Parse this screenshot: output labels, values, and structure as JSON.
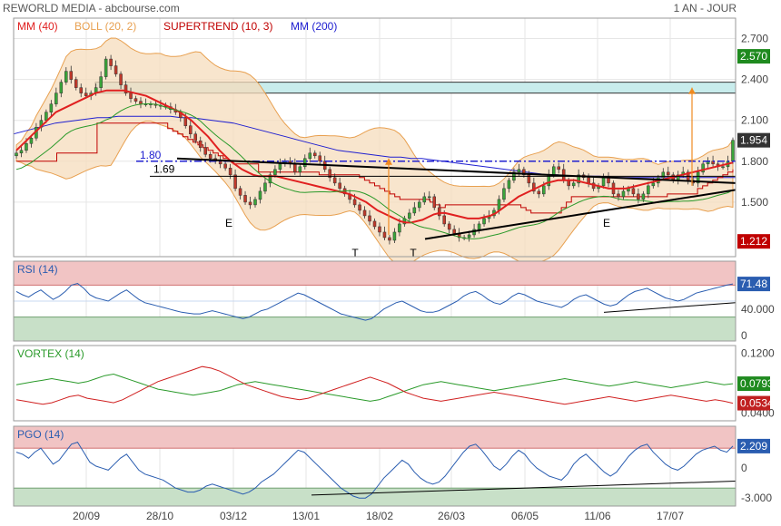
{
  "header": {
    "title": "REWORLD MEDIA - abcbourse.com",
    "period": "1 AN - JOUR"
  },
  "colors": {
    "mm40": "#e02020",
    "boll": "#e8a050",
    "supertrend": "#c00000",
    "mm200": "#2020d0",
    "rsi": "#2a5db0",
    "vortex_pos": "#2a9a2a",
    "vortex_neg": "#d02020",
    "pgo": "#2a5db0",
    "up_candle": "#3aa53a",
    "down_candle": "#c0392b",
    "zone_red": "#f1c4c4",
    "zone_green": "#c8e0c8",
    "resistance_zone": "#c8ecec",
    "last_price_bg": "#333333",
    "mm_badge_bg": "#1f8a1f"
  },
  "chart_data": [
    {
      "type": "line",
      "panel": "price",
      "legend": [
        {
          "label": "MM (40)",
          "color": "#e02020"
        },
        {
          "label": "BOLL (20, 2)",
          "color": "#e8a050"
        },
        {
          "label": "SUPERTREND (10, 3)",
          "color": "#c00000"
        },
        {
          "label": "MM (200)",
          "color": "#2020d0"
        }
      ],
      "x_tick_labels": [
        "20/09",
        "28/10",
        "03/12",
        "13/01",
        "18/02",
        "26/03",
        "06/05",
        "11/06",
        "17/07"
      ],
      "y_ticks": [
        "2.700",
        "2.400",
        "2.100",
        "1.800",
        "1.500"
      ],
      "ylim": [
        1.1,
        2.85
      ],
      "badges": [
        {
          "label": "2.570",
          "value": 2.57,
          "kind": "mm"
        },
        {
          "label": "1.954",
          "value": 1.954,
          "kind": "last"
        },
        {
          "label": "1.212",
          "value": 1.212,
          "kind": "low"
        }
      ],
      "levels": [
        {
          "label": "1.80",
          "value": 1.8,
          "style": "dash-dot-blue"
        },
        {
          "label": "1.69",
          "value": 1.69,
          "style": "solid-black"
        }
      ],
      "resistance_zone": [
        2.3,
        2.38
      ],
      "pattern_labels": [
        {
          "text": "E",
          "value": 1.44,
          "date": "15/11"
        },
        {
          "text": "T",
          "value": 1.22,
          "date": "25/01"
        },
        {
          "text": "T",
          "value": 1.22,
          "date": "02/03"
        },
        {
          "text": "E",
          "value": 1.44,
          "date": "16/06"
        }
      ],
      "close": [
        1.86,
        1.88,
        1.93,
        1.97,
        2.05,
        2.1,
        2.16,
        2.22,
        2.3,
        2.38,
        2.46,
        2.4,
        2.34,
        2.3,
        2.28,
        2.3,
        2.34,
        2.42,
        2.55,
        2.5,
        2.44,
        2.36,
        2.3,
        2.26,
        2.24,
        2.22,
        2.22,
        2.22,
        2.21,
        2.21,
        2.2,
        2.18,
        2.16,
        2.12,
        2.06,
        2.0,
        1.95,
        1.9,
        1.85,
        1.82,
        1.8,
        1.78,
        1.75,
        1.7,
        1.6,
        1.55,
        1.5,
        1.48,
        1.52,
        1.58,
        1.64,
        1.7,
        1.74,
        1.78,
        1.8,
        1.78,
        1.72,
        1.76,
        1.82,
        1.86,
        1.84,
        1.8,
        1.74,
        1.68,
        1.64,
        1.6,
        1.56,
        1.52,
        1.48,
        1.44,
        1.4,
        1.36,
        1.32,
        1.28,
        1.24,
        1.22,
        1.28,
        1.34,
        1.38,
        1.42,
        1.46,
        1.5,
        1.54,
        1.54,
        1.46,
        1.4,
        1.34,
        1.3,
        1.27,
        1.24,
        1.24,
        1.26,
        1.3,
        1.34,
        1.38,
        1.4,
        1.44,
        1.52,
        1.6,
        1.66,
        1.72,
        1.74,
        1.7,
        1.64,
        1.58,
        1.56,
        1.62,
        1.7,
        1.76,
        1.74,
        1.66,
        1.62,
        1.64,
        1.7,
        1.68,
        1.64,
        1.6,
        1.62,
        1.68,
        1.64,
        1.56,
        1.54,
        1.58,
        1.6,
        1.56,
        1.52,
        1.56,
        1.62,
        1.64,
        1.68,
        1.72,
        1.7,
        1.66,
        1.7,
        1.72,
        1.66,
        1.64,
        1.72,
        1.78,
        1.8,
        1.78,
        1.76,
        1.76,
        1.8,
        1.954
      ],
      "mm40": [
        1.88,
        1.92,
        1.96,
        2.0,
        2.04,
        2.08,
        2.12,
        2.16,
        2.18,
        2.2,
        2.22,
        2.24,
        2.26,
        2.28,
        2.3,
        2.31,
        2.32,
        2.32,
        2.32,
        2.32,
        2.31,
        2.3,
        2.29,
        2.28,
        2.26,
        2.24,
        2.22,
        2.2,
        2.18,
        2.16,
        2.13,
        2.1,
        2.06,
        2.02,
        1.98,
        1.93,
        1.88,
        1.84,
        1.8,
        1.77,
        1.74,
        1.72,
        1.7,
        1.69,
        1.69,
        1.69,
        1.69,
        1.68,
        1.67,
        1.66,
        1.65,
        1.64,
        1.63,
        1.62,
        1.61,
        1.6,
        1.59,
        1.58,
        1.57,
        1.56,
        1.54,
        1.52,
        1.5,
        1.47,
        1.44,
        1.42,
        1.4,
        1.38,
        1.36,
        1.35,
        1.35,
        1.36,
        1.37,
        1.39,
        1.41,
        1.42,
        1.42,
        1.41,
        1.4,
        1.39,
        1.38,
        1.38,
        1.38,
        1.39,
        1.4,
        1.42,
        1.45,
        1.48,
        1.51,
        1.54,
        1.56,
        1.58,
        1.6,
        1.62,
        1.64,
        1.65,
        1.66,
        1.66,
        1.66,
        1.66,
        1.65,
        1.64,
        1.63,
        1.62,
        1.61,
        1.6,
        1.6,
        1.6,
        1.6,
        1.61,
        1.62,
        1.63,
        1.64,
        1.65,
        1.66,
        1.67,
        1.68,
        1.69,
        1.7,
        1.71,
        1.72,
        1.73,
        1.74,
        1.75,
        1.76,
        1.77,
        1.78,
        1.79
      ],
      "mm200": [
        2.0,
        2.02,
        2.04,
        2.06,
        2.08,
        2.09,
        2.1,
        2.11,
        2.12,
        2.12,
        2.13,
        2.13,
        2.13,
        2.13,
        2.13,
        2.13,
        2.12,
        2.12,
        2.11,
        2.1,
        2.09,
        2.08,
        2.06,
        2.04,
        2.02,
        2.0,
        1.98,
        1.96,
        1.94,
        1.92,
        1.9,
        1.88,
        1.87,
        1.86,
        1.85,
        1.84,
        1.83,
        1.83,
        1.82,
        1.82,
        1.81,
        1.8,
        1.79,
        1.78,
        1.77,
        1.76,
        1.75,
        1.74,
        1.73,
        1.72,
        1.71,
        1.7,
        1.7,
        1.69,
        1.69,
        1.69,
        1.69,
        1.68,
        1.68,
        1.68,
        1.68,
        1.68,
        1.68,
        1.68,
        1.68,
        1.68,
        1.68,
        1.68,
        1.68,
        1.68
      ],
      "supertrend": [
        1.8,
        1.8,
        1.8,
        1.8,
        1.8,
        1.8,
        1.8,
        1.8,
        1.86,
        1.86,
        1.86,
        1.86,
        1.86,
        1.86,
        1.86,
        1.86,
        2.08,
        2.08,
        2.08,
        2.08,
        2.08,
        2.08,
        2.08,
        2.08,
        2.08,
        2.08,
        2.08,
        2.08,
        2.08,
        2.08,
        2.04,
        2.02,
        2.0,
        1.98,
        1.96,
        1.94,
        1.92,
        1.9,
        1.88,
        1.86,
        1.84,
        1.82,
        1.8,
        1.78,
        1.78,
        1.78,
        1.78,
        1.78,
        1.72,
        1.72,
        1.72,
        1.72,
        1.72,
        1.72,
        1.72,
        1.72,
        1.72,
        1.72,
        1.72,
        1.72,
        1.7,
        1.7,
        1.7,
        1.7,
        1.7,
        1.7,
        1.7,
        1.7,
        1.68,
        1.66,
        1.64,
        1.62,
        1.6,
        1.58,
        1.56,
        1.54,
        1.52,
        1.52,
        1.52,
        1.52,
        1.52,
        1.52,
        1.5,
        1.48,
        1.46,
        1.48,
        1.48,
        1.48,
        1.48,
        1.48,
        1.48,
        1.48,
        1.48,
        1.48,
        1.48,
        1.48,
        1.48,
        1.48,
        1.48,
        1.48,
        1.46,
        1.44,
        1.42,
        1.42,
        1.42,
        1.42,
        1.42,
        1.42,
        1.46,
        1.5,
        1.54,
        1.54,
        1.54,
        1.54,
        1.54,
        1.54,
        1.54,
        1.54,
        1.54,
        1.54,
        1.54,
        1.54,
        1.54,
        1.54,
        1.54,
        1.54,
        1.54,
        1.54,
        1.54,
        1.56,
        1.56,
        1.56,
        1.56,
        1.56,
        1.56,
        1.6,
        1.62,
        1.64,
        1.66,
        1.68,
        1.7,
        1.72,
        1.74
      ]
    },
    {
      "type": "line",
      "panel": "rsi",
      "title": "RSI (14)",
      "y_ticks": [
        "40.000",
        "0"
      ],
      "ylim": [
        0,
        100
      ],
      "zones": {
        "overbought": 70,
        "oversold": 30
      },
      "badge": {
        "label": "71.48",
        "value": 71.48
      },
      "values": [
        62,
        58,
        55,
        60,
        64,
        58,
        52,
        56,
        62,
        70,
        72,
        66,
        58,
        54,
        52,
        50,
        55,
        60,
        64,
        58,
        52,
        48,
        46,
        44,
        42,
        40,
        38,
        36,
        35,
        34,
        34,
        36,
        38,
        36,
        34,
        32,
        30,
        28,
        30,
        34,
        38,
        40,
        44,
        48,
        52,
        56,
        60,
        58,
        54,
        50,
        46,
        42,
        38,
        34,
        32,
        30,
        28,
        26,
        28,
        34,
        40,
        44,
        48,
        50,
        46,
        42,
        38,
        36,
        36,
        38,
        42,
        46,
        50,
        56,
        60,
        62,
        58,
        52,
        48,
        46,
        50,
        56,
        60,
        58,
        54,
        50,
        48,
        46,
        44,
        42,
        46,
        52,
        56,
        58,
        54,
        50,
        46,
        44,
        46,
        52,
        58,
        62,
        64,
        66,
        62,
        58,
        54,
        52,
        50,
        52,
        56,
        60,
        62,
        64,
        66,
        68,
        70,
        71.48
      ]
    },
    {
      "type": "line",
      "panel": "vortex",
      "title": "VORTEX (14)",
      "y_ticks": [
        "0.1200",
        "0.0400"
      ],
      "ylim": [
        0.03,
        0.13
      ],
      "badges": [
        {
          "label": "0.0793",
          "value": 0.0793,
          "series": "positive"
        },
        {
          "label": "0.0534",
          "value": 0.0534,
          "series": "negative"
        }
      ],
      "series": [
        {
          "values": [
            0.078,
            0.08,
            0.082,
            0.084,
            0.086,
            0.084,
            0.082,
            0.08,
            0.082,
            0.086,
            0.09,
            0.092,
            0.088,
            0.084,
            0.08,
            0.076,
            0.072,
            0.07,
            0.068,
            0.066,
            0.064,
            0.066,
            0.068,
            0.07,
            0.074,
            0.078,
            0.08,
            0.082,
            0.08,
            0.078,
            0.076,
            0.074,
            0.072,
            0.07,
            0.068,
            0.066,
            0.064,
            0.062,
            0.06,
            0.058,
            0.056,
            0.058,
            0.062,
            0.066,
            0.07,
            0.074,
            0.078,
            0.08,
            0.082,
            0.08,
            0.078,
            0.076,
            0.074,
            0.072,
            0.07,
            0.072,
            0.074,
            0.076,
            0.078,
            0.08,
            0.082,
            0.084,
            0.086,
            0.084,
            0.082,
            0.08,
            0.078,
            0.076,
            0.078,
            0.08,
            0.082,
            0.08,
            0.078,
            0.076,
            0.074,
            0.076,
            0.078,
            0.08,
            0.082,
            0.08,
            0.078,
            0.0793
          ]
        },
        {
          "values": [
            0.058,
            0.056,
            0.054,
            0.052,
            0.054,
            0.058,
            0.062,
            0.064,
            0.06,
            0.058,
            0.056,
            0.054,
            0.058,
            0.064,
            0.07,
            0.076,
            0.082,
            0.086,
            0.09,
            0.094,
            0.098,
            0.102,
            0.1,
            0.096,
            0.09,
            0.084,
            0.078,
            0.074,
            0.07,
            0.066,
            0.062,
            0.06,
            0.058,
            0.06,
            0.064,
            0.068,
            0.072,
            0.076,
            0.08,
            0.084,
            0.088,
            0.084,
            0.08,
            0.074,
            0.068,
            0.064,
            0.06,
            0.058,
            0.056,
            0.058,
            0.06,
            0.062,
            0.064,
            0.066,
            0.068,
            0.066,
            0.064,
            0.062,
            0.06,
            0.058,
            0.056,
            0.054,
            0.052,
            0.054,
            0.056,
            0.058,
            0.06,
            0.062,
            0.06,
            0.058,
            0.056,
            0.058,
            0.06,
            0.062,
            0.064,
            0.062,
            0.06,
            0.058,
            0.056,
            0.058,
            0.056,
            0.0534
          ]
        }
      ]
    },
    {
      "type": "line",
      "panel": "pgo",
      "title": "PGO (14)",
      "y_ticks": [
        "0",
        "-3.000"
      ],
      "ylim": [
        -3.8,
        4.2
      ],
      "zones": {
        "overbought": 2.0,
        "oversold": -2.0
      },
      "badge": {
        "label": "2.209",
        "value": 2.209
      },
      "values": [
        1.6,
        1.4,
        1.0,
        1.6,
        2.0,
        1.2,
        0.4,
        0.8,
        1.6,
        2.4,
        2.6,
        1.6,
        0.6,
        0.2,
        0.0,
        -0.2,
        0.4,
        1.0,
        1.4,
        0.6,
        -0.2,
        -0.6,
        -0.8,
        -1.0,
        -1.2,
        -1.6,
        -2.0,
        -2.2,
        -2.4,
        -2.4,
        -2.2,
        -1.8,
        -1.6,
        -1.8,
        -2.0,
        -2.2,
        -2.4,
        -2.6,
        -2.4,
        -2.0,
        -1.4,
        -1.0,
        -0.6,
        0.0,
        0.6,
        1.2,
        1.8,
        1.6,
        1.0,
        0.4,
        -0.2,
        -0.8,
        -1.4,
        -2.0,
        -2.4,
        -2.8,
        -3.0,
        -3.0,
        -2.6,
        -1.8,
        -1.0,
        -0.4,
        0.2,
        0.8,
        0.4,
        -0.4,
        -1.0,
        -1.4,
        -1.6,
        -1.4,
        -0.8,
        0.0,
        0.8,
        1.6,
        2.2,
        2.4,
        1.8,
        1.0,
        0.2,
        -0.2,
        0.4,
        1.2,
        1.8,
        1.4,
        0.6,
        0.0,
        -0.4,
        -0.8,
        -1.0,
        -1.2,
        -0.6,
        0.4,
        1.0,
        1.4,
        0.8,
        0.2,
        -0.4,
        -0.8,
        -0.4,
        0.4,
        1.2,
        1.8,
        2.2,
        2.4,
        1.6,
        1.0,
        0.4,
        0.0,
        -0.2,
        0.2,
        0.8,
        1.4,
        1.8,
        2.0,
        2.2,
        1.8,
        1.6,
        2.209
      ]
    }
  ]
}
